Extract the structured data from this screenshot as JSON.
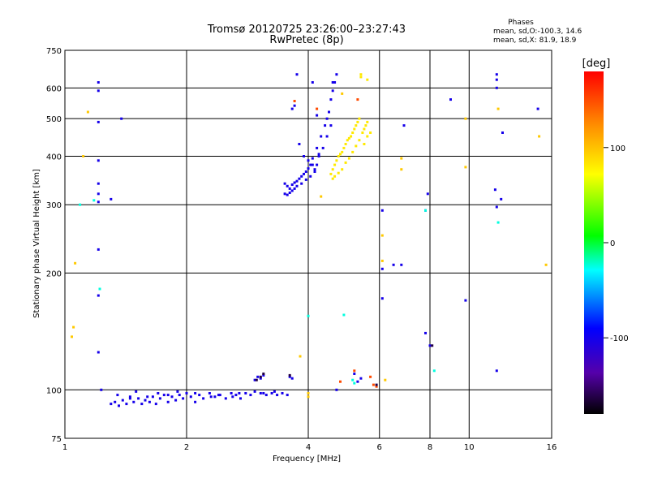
{
  "chart_data": {
    "type": "scatter",
    "title": "Tromsø 20120725 23:26:00–23:27:43",
    "subtitle": "RwPretec (8p)",
    "xlabel": "Frequency [MHz]",
    "ylabel": "Stationary phase Virtual Height [km]",
    "x_scale": "log",
    "y_scale": "log",
    "xlim": [
      1,
      16
    ],
    "ylim": [
      75,
      750
    ],
    "x_ticks": [
      1,
      2,
      4,
      6,
      8,
      10,
      16
    ],
    "x_tick_labels": [
      "1",
      "2",
      "4",
      "6",
      "8",
      "10",
      "16"
    ],
    "y_ticks": [
      75,
      100,
      200,
      300,
      400,
      500,
      600,
      750
    ],
    "y_tick_labels": [
      "75",
      "100",
      "200",
      "300",
      "400",
      "500",
      "600",
      "750"
    ],
    "grid": true,
    "stats": {
      "heading": "Phases",
      "line_o": "mean, sd,O:-100.3, 14.6",
      "line_x": "mean, sd,X:  81.9, 18.9"
    },
    "colorbar": {
      "label": "[deg]",
      "range": [
        -180,
        180
      ],
      "ticks": [
        100,
        0,
        -100
      ],
      "tick_labels": [
        "100",
        "0",
        "-100"
      ]
    },
    "series": [
      {
        "points": [
          [
            1.3,
            92
          ],
          [
            1.33,
            93
          ],
          [
            1.36,
            91
          ],
          [
            1.39,
            94
          ],
          [
            1.42,
            92
          ],
          [
            1.45,
            96
          ],
          [
            1.48,
            93
          ],
          [
            1.52,
            95
          ],
          [
            1.55,
            92
          ],
          [
            1.58,
            94
          ],
          [
            1.62,
            93
          ],
          [
            1.65,
            96
          ],
          [
            1.68,
            92
          ],
          [
            1.72,
            95
          ],
          [
            1.76,
            97
          ],
          [
            1.8,
            93
          ],
          [
            1.84,
            96
          ],
          [
            1.88,
            94
          ],
          [
            1.92,
            97
          ],
          [
            1.96,
            95
          ],
          [
            2.0,
            98
          ],
          [
            2.05,
            96
          ],
          [
            2.1,
            93
          ],
          [
            2.15,
            97
          ],
          [
            2.2,
            95
          ],
          [
            2.28,
            98
          ],
          [
            2.35,
            96
          ],
          [
            2.42,
            97
          ],
          [
            2.5,
            95
          ],
          [
            2.58,
            98
          ],
          [
            2.65,
            97
          ],
          [
            2.72,
            95
          ],
          [
            2.8,
            98
          ],
          [
            2.88,
            97
          ],
          [
            2.95,
            99
          ],
          [
            3.05,
            98
          ],
          [
            3.15,
            97
          ],
          [
            3.25,
            98
          ],
          [
            3.35,
            97
          ],
          [
            3.45,
            98
          ],
          [
            3.55,
            97
          ],
          [
            1.35,
            97
          ],
          [
            1.5,
            99
          ],
          [
            1.7,
            98
          ],
          [
            1.9,
            99
          ],
          [
            2.1,
            98
          ],
          [
            2.4,
            97
          ],
          [
            2.6,
            96
          ],
          [
            3.1,
            98
          ],
          [
            3.3,
            99
          ],
          [
            1.45,
            95
          ],
          [
            1.6,
            96
          ],
          [
            1.8,
            97
          ],
          [
            2.3,
            96
          ],
          [
            2.7,
            98
          ],
          [
            2.95,
            106
          ],
          [
            3.0,
            108
          ],
          [
            3.05,
            107
          ],
          [
            3.1,
            109
          ],
          [
            3.6,
            108
          ],
          [
            3.65,
            107
          ],
          [
            3.8,
            430
          ],
          [
            4.0,
            390
          ],
          [
            4.2,
            420
          ],
          [
            4.3,
            450
          ],
          [
            4.4,
            480
          ],
          [
            4.5,
            520
          ],
          [
            4.55,
            560
          ],
          [
            4.6,
            590
          ],
          [
            4.65,
            620
          ],
          [
            4.7,
            650
          ],
          [
            3.9,
            400
          ],
          [
            4.1,
            380
          ],
          [
            4.25,
            405
          ],
          [
            4.45,
            500
          ],
          [
            4.6,
            620
          ],
          [
            3.5,
            340
          ],
          [
            3.55,
            335
          ],
          [
            3.6,
            330
          ],
          [
            3.65,
            338
          ],
          [
            3.7,
            342
          ],
          [
            3.75,
            345
          ],
          [
            3.8,
            350
          ],
          [
            3.85,
            355
          ],
          [
            3.9,
            360
          ],
          [
            3.95,
            365
          ],
          [
            4.0,
            372
          ],
          [
            4.05,
            380
          ],
          [
            4.1,
            395
          ],
          [
            3.5,
            320
          ],
          [
            3.55,
            318
          ],
          [
            3.6,
            322
          ],
          [
            3.65,
            326
          ],
          [
            3.7,
            330
          ],
          [
            3.75,
            335
          ],
          [
            3.85,
            340
          ],
          [
            3.95,
            348
          ],
          [
            4.05,
            355
          ],
          [
            4.15,
            365
          ],
          [
            4.2,
            380
          ],
          [
            4.25,
            400
          ],
          [
            4.35,
            420
          ],
          [
            4.45,
            450
          ],
          [
            4.55,
            480
          ],
          [
            1.21,
            620
          ],
          [
            1.21,
            590
          ],
          [
            1.21,
            490
          ],
          [
            1.21,
            390
          ],
          [
            1.21,
            340
          ],
          [
            1.21,
            320
          ],
          [
            1.21,
            305
          ],
          [
            1.21,
            230
          ],
          [
            1.21,
            175
          ],
          [
            1.21,
            125
          ],
          [
            1.23,
            100
          ],
          [
            1.3,
            310
          ],
          [
            1.38,
            500
          ],
          [
            4.15,
            370
          ],
          [
            4.1,
            620
          ],
          [
            4.2,
            510
          ],
          [
            3.75,
            650
          ],
          [
            3.7,
            540
          ],
          [
            3.65,
            530
          ],
          [
            4.7,
            100
          ],
          [
            5.3,
            105
          ],
          [
            5.2,
            110
          ],
          [
            5.4,
            107
          ],
          [
            6.1,
            290
          ],
          [
            6.1,
            205
          ],
          [
            6.5,
            210
          ],
          [
            6.8,
            210
          ],
          [
            6.9,
            480
          ],
          [
            6.1,
            172
          ],
          [
            7.8,
            140
          ],
          [
            8.0,
            130
          ],
          [
            9.0,
            560
          ],
          [
            9.8,
            170
          ],
          [
            7.9,
            320
          ],
          [
            7.8,
            290
          ],
          [
            11.7,
            650
          ],
          [
            11.7,
            600
          ],
          [
            11.7,
            630
          ],
          [
            12.1,
            460
          ],
          [
            12.0,
            310
          ],
          [
            11.6,
            328
          ],
          [
            11.7,
            296
          ],
          [
            11.7,
            112
          ],
          [
            14.8,
            530
          ]
        ],
        "phase_deg": -100
      },
      {
        "points": [
          [
            4.55,
            360
          ],
          [
            4.6,
            370
          ],
          [
            4.65,
            380
          ],
          [
            4.7,
            390
          ],
          [
            4.75,
            400
          ],
          [
            4.8,
            405
          ],
          [
            4.85,
            410
          ],
          [
            4.9,
            420
          ],
          [
            4.95,
            430
          ],
          [
            5.0,
            440
          ],
          [
            5.05,
            445
          ],
          [
            5.1,
            450
          ],
          [
            5.15,
            460
          ],
          [
            5.2,
            470
          ],
          [
            5.25,
            480
          ],
          [
            5.3,
            490
          ],
          [
            5.35,
            500
          ],
          [
            4.6,
            350
          ],
          [
            4.65,
            355
          ],
          [
            4.75,
            362
          ],
          [
            4.85,
            370
          ],
          [
            4.95,
            385
          ],
          [
            5.05,
            395
          ],
          [
            5.15,
            410
          ],
          [
            5.25,
            425
          ],
          [
            5.35,
            440
          ],
          [
            5.45,
            460
          ],
          [
            5.5,
            470
          ],
          [
            5.55,
            480
          ],
          [
            5.6,
            490
          ],
          [
            5.4,
            640
          ],
          [
            5.4,
            650
          ],
          [
            5.6,
            630
          ],
          [
            5.5,
            430
          ],
          [
            5.6,
            450
          ],
          [
            5.7,
            460
          ]
        ],
        "phase_deg": 80
      },
      {
        "points": [
          [
            1.11,
            400
          ],
          [
            1.14,
            520
          ],
          [
            1.06,
            212
          ],
          [
            1.05,
            145
          ],
          [
            1.04,
            137
          ],
          [
            3.82,
            122
          ],
          [
            4.0,
            98
          ],
          [
            4.0,
            96
          ],
          [
            4.3,
            315
          ],
          [
            4.85,
            580
          ],
          [
            6.1,
            215
          ],
          [
            6.1,
            250
          ],
          [
            6.2,
            106
          ],
          [
            6.8,
            370
          ],
          [
            6.8,
            395
          ],
          [
            9.8,
            500
          ],
          [
            9.8,
            375
          ],
          [
            11.8,
            530
          ],
          [
            14.9,
            450
          ],
          [
            15.5,
            210
          ]
        ],
        "phase_deg": 95
      },
      {
        "points": [
          [
            1.22,
            182
          ],
          [
            1.18,
            308
          ],
          [
            4.0,
            155
          ],
          [
            4.9,
            156
          ],
          [
            5.15,
            106
          ],
          [
            5.2,
            104
          ],
          [
            7.8,
            290
          ],
          [
            8.2,
            112
          ],
          [
            11.8,
            270
          ],
          [
            1.09,
            300
          ]
        ],
        "phase_deg": -25
      },
      {
        "points": [
          [
            3.7,
            555
          ],
          [
            4.2,
            530
          ],
          [
            5.3,
            560
          ],
          [
            5.7,
            108
          ],
          [
            5.9,
            102
          ],
          [
            5.8,
            103
          ],
          [
            4.8,
            105
          ],
          [
            5.2,
            112
          ]
        ],
        "phase_deg": 150
      },
      {
        "points": [
          [
            3.05,
            108
          ],
          [
            3.1,
            110
          ],
          [
            3.6,
            109
          ],
          [
            2.98,
            106
          ],
          [
            8.1,
            130
          ],
          [
            5.9,
            103
          ]
        ],
        "phase_deg": -160
      }
    ]
  }
}
